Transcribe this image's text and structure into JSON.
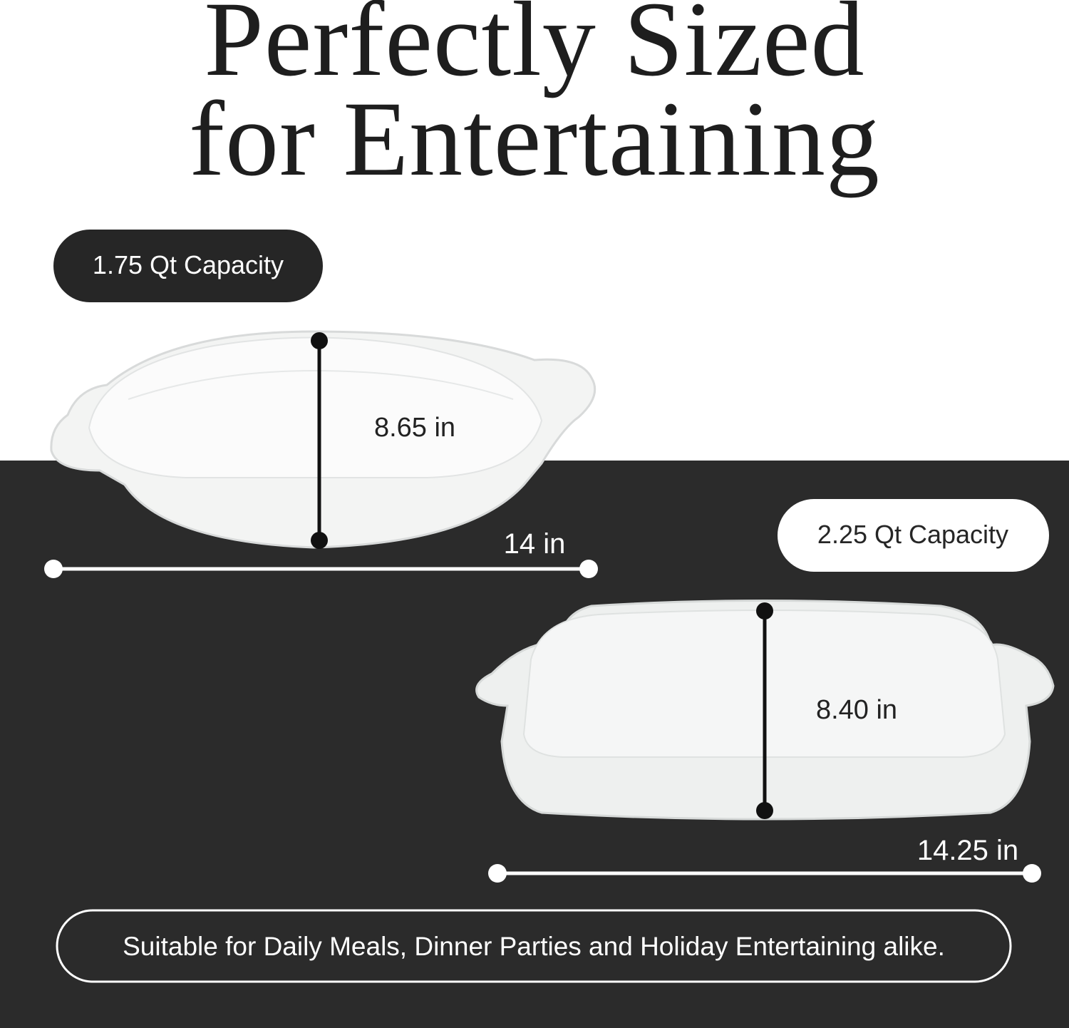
{
  "header": {
    "title_lines": [
      "Perfectly Sized",
      "for Entertaining"
    ]
  },
  "products": [
    {
      "capacity": "1.75 Qt Capacity",
      "depth": "8.65 in",
      "width": "14 in"
    },
    {
      "capacity": "2.25 Qt Capacity",
      "depth": "8.40 in",
      "width": "14.25 in"
    }
  ],
  "footer": {
    "text": "Suitable for Daily Meals, Dinner Parties and Holiday Entertaining alike."
  }
}
